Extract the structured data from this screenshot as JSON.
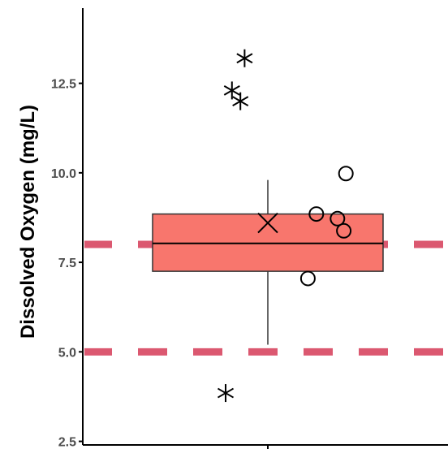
{
  "chart_data": {
    "type": "box",
    "ylabel": "Dissolved Oxygen (mg/L)",
    "xlabel": "",
    "ylim": [
      2.4,
      14.6
    ],
    "yticks": [
      2.5,
      5.0,
      7.5,
      10.0,
      12.5
    ],
    "ytick_labels": [
      "2.5",
      "5.0",
      "7.5",
      "10.0",
      "12.5"
    ],
    "grid": false,
    "box": {
      "q1": 7.25,
      "median": 8.03,
      "q3": 8.85,
      "whisker_low": 5.2,
      "whisker_high": 9.8,
      "mean": 8.6,
      "fill": "#F8766D",
      "outline": "#333333"
    },
    "outliers": {
      "marker": "asterisk",
      "x": [
        0.8,
        0.83,
        0.87,
        0.89
      ],
      "y": [
        3.85,
        12.3,
        12.0,
        13.2
      ]
    },
    "jittered_points": {
      "marker": "open-circle",
      "x": [
        1.19,
        1.23,
        1.33,
        1.36,
        1.37
      ],
      "y": [
        7.05,
        8.85,
        8.72,
        8.38,
        9.98
      ]
    },
    "reference_lines": [
      {
        "y": 8.0,
        "style": "dashed",
        "color": "#DB5870"
      },
      {
        "y": 5.0,
        "style": "dashed",
        "color": "#DB5870"
      }
    ],
    "colors": {
      "axis": "#000000",
      "mean_marker": "#000000",
      "points": "#000000"
    }
  }
}
